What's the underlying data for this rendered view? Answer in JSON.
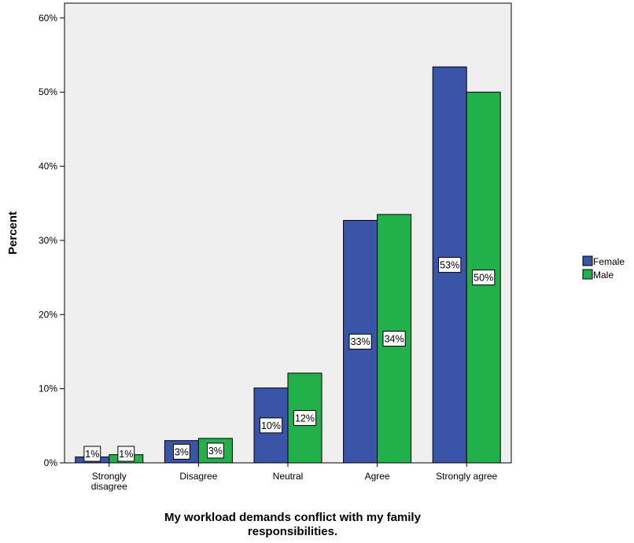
{
  "chart_data": {
    "type": "bar",
    "categories": [
      "Strongly disagree",
      "Disagree",
      "Neutral",
      "Agree",
      "Strongly agree"
    ],
    "category_label_lines": [
      [
        "Strongly",
        "disagree"
      ],
      [
        "Disagree"
      ],
      [
        "Neutral"
      ],
      [
        "Agree"
      ],
      [
        "Strongly agree"
      ]
    ],
    "series": [
      {
        "name": "Female",
        "color": "#3a54a8",
        "values": [
          0.8,
          3.0,
          10.1,
          32.7,
          53.4
        ],
        "labels": [
          "1%",
          "3%",
          "10%",
          "33%",
          "53%"
        ]
      },
      {
        "name": "Male",
        "color": "#22b04b",
        "values": [
          1.1,
          3.3,
          12.1,
          33.5,
          50.0
        ],
        "labels": [
          "1%",
          "3%",
          "12%",
          "34%",
          "50%"
        ]
      }
    ],
    "ylabel": "Percent",
    "xlabel_lines": [
      "My workload demands conflict with my family",
      "responsibilities."
    ],
    "ylim": [
      0,
      62
    ],
    "yticks": [
      0,
      10,
      20,
      30,
      40,
      50,
      60
    ],
    "ytick_labels": [
      "0%",
      "10%",
      "20%",
      "30%",
      "40%",
      "50%",
      "60%"
    ],
    "grid": false,
    "legend_position": "right",
    "plot_background": "#efefef"
  }
}
